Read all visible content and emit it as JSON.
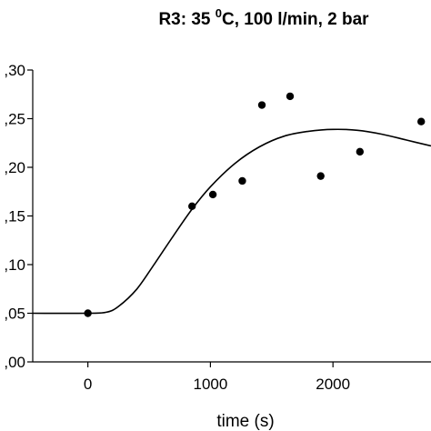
{
  "chart_data": {
    "type": "scatter",
    "title": {
      "prefix": "R3: 35 ",
      "superscript": "0",
      "suffix": "C, 100 l/min, 2 bar"
    },
    "xlabel": "time (s)",
    "ylabel": "",
    "xlim": [
      -450,
      2800
    ],
    "ylim": [
      0.0,
      0.3
    ],
    "x_ticks": [
      0,
      1000,
      2000
    ],
    "x_tick_labels": [
      "0",
      "1000",
      "2000"
    ],
    "y_ticks": [
      0.0,
      0.05,
      0.1,
      0.15,
      0.2,
      0.25,
      0.3
    ],
    "y_tick_labels": [
      ",00",
      ",05",
      ",10",
      ",15",
      ",20",
      ",25",
      ",30"
    ],
    "grid": false,
    "legend": "none",
    "series": [
      {
        "kind": "points",
        "x": [
          0,
          850,
          1020,
          1260,
          1420,
          1650,
          1900,
          2220,
          2720
        ],
        "y": [
          0.05,
          0.16,
          0.172,
          0.186,
          0.264,
          0.273,
          0.191,
          0.216,
          0.247
        ]
      },
      {
        "kind": "line",
        "x": [
          -450,
          0,
          150,
          250,
          400,
          550,
          700,
          850,
          1000,
          1200,
          1400,
          1600,
          1800,
          2000,
          2200,
          2400,
          2600,
          2800
        ],
        "y": [
          0.05,
          0.05,
          0.051,
          0.057,
          0.075,
          0.102,
          0.13,
          0.157,
          0.18,
          0.204,
          0.221,
          0.232,
          0.237,
          0.239,
          0.238,
          0.234,
          0.228,
          0.222
        ]
      }
    ]
  }
}
